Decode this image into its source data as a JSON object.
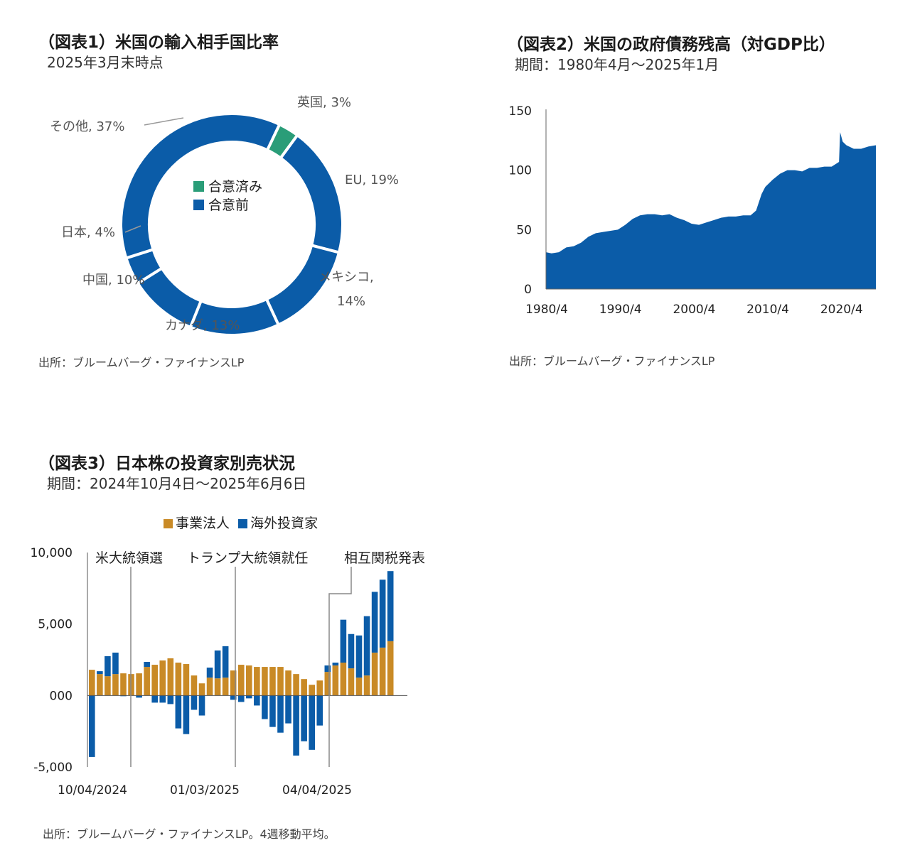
{
  "colors": {
    "blue": "#0b5ca8",
    "green": "#2a9d78",
    "orange": "#c98a26",
    "axis": "#888888",
    "leader": "#999999"
  },
  "chart_data": [
    {
      "id": "fig1",
      "type": "pie",
      "title": "（図表1）米国の輸入相手国比率",
      "subtitle": "2025年3月末時点",
      "source": "出所：ブルームバーグ・ファイナンスLP",
      "legend": [
        "合意済み",
        "合意前"
      ],
      "slices": [
        {
          "label": "英国, 3%",
          "name": "英国",
          "value": 3,
          "status": "合意済み"
        },
        {
          "label": "EU, 19%",
          "name": "EU",
          "value": 19,
          "status": "合意前"
        },
        {
          "label": "メキシコ,",
          "label2": "14%",
          "name": "メキシコ",
          "value": 14,
          "status": "合意前"
        },
        {
          "label": "カナダ, 13%",
          "name": "カナダ",
          "value": 13,
          "status": "合意前"
        },
        {
          "label": "中国, 10%",
          "name": "中国",
          "value": 10,
          "status": "合意前"
        },
        {
          "label": "日本, 4%",
          "name": "日本",
          "value": 4,
          "status": "合意前"
        },
        {
          "label": "その他, 37%",
          "name": "その他",
          "value": 37,
          "status": "合意前"
        }
      ]
    },
    {
      "id": "fig2",
      "type": "area",
      "title": "（図表2）米国の政府債務残高（対GDP比）",
      "subtitle": "期間：1980年4月～2025年1月",
      "source": "出所：ブルームバーグ・ファイナンスLP",
      "y_ticks": [
        "0",
        "50",
        "100",
        "150"
      ],
      "x_ticks": [
        "1980/4",
        "1990/4",
        "2000/4",
        "2010/4",
        "2020/4"
      ],
      "x_tick_years": [
        1980.25,
        1990.25,
        2000.25,
        2010.25,
        2020.25
      ],
      "xlim": [
        1980.25,
        2025.0
      ],
      "ylim": [
        0,
        150
      ],
      "x": [
        1980.25,
        1981,
        1982,
        1983,
        1984,
        1985,
        1986,
        1987,
        1988,
        1989,
        1990,
        1991,
        1992,
        1993,
        1994,
        1995,
        1996,
        1997,
        1998,
        1999,
        2000,
        2001,
        2002,
        2003,
        2004,
        2005,
        2006,
        2007,
        2008,
        2008.75,
        2009.5,
        2010,
        2011,
        2012,
        2013,
        2014,
        2015,
        2016,
        2017,
        2018,
        2019,
        2020,
        2020.15,
        2020.5,
        2021,
        2022,
        2023,
        2024,
        2025.0
      ],
      "values": [
        31,
        30,
        31,
        35,
        36,
        39,
        44,
        47,
        48,
        49,
        50,
        54,
        59,
        62,
        63,
        63,
        62,
        63,
        60,
        58,
        55,
        54,
        56,
        58,
        60,
        61,
        61,
        62,
        62,
        66,
        80,
        86,
        92,
        97,
        100,
        100,
        99,
        102,
        102,
        103,
        103,
        107,
        132,
        124,
        121,
        118,
        118,
        120,
        121
      ]
    },
    {
      "id": "fig3",
      "type": "bar",
      "title": "（図表3）日本株の投資家別売状況",
      "subtitle": "期間：2024年10月4日～2025年6月6日",
      "source": "出所：ブルームバーグ・ファイナンスLP。4週移動平均。",
      "legend": [
        "事業法人",
        "海外投資家"
      ],
      "y_ticks": [
        "-5,000",
        "000",
        "5,000",
        "10,000"
      ],
      "ylim": [
        -5000,
        10000
      ],
      "x_ticks": [
        "10/04/2024",
        "01/03/2025",
        "04/04/2025"
      ],
      "annotations": [
        "米大統領選",
        "トランプ大統領就任",
        "相互関税発表"
      ],
      "series": [
        {
          "name": "事業法人",
          "values": [
            1800,
            1500,
            1350,
            1500,
            1550,
            1500,
            1550,
            2000,
            2150,
            2450,
            2600,
            2300,
            2200,
            1400,
            850,
            1250,
            1200,
            1250,
            1750,
            2150,
            2100,
            2000,
            2000,
            2000,
            2000,
            1750,
            1500,
            1150,
            750,
            1050,
            1650,
            2100,
            2300,
            1900,
            1250,
            1400,
            3000,
            3350,
            3800
          ]
        },
        {
          "name": "海外投資家",
          "values": [
            -4300,
            200,
            1400,
            1500,
            -50,
            0,
            -150,
            350,
            -500,
            -500,
            -600,
            -2300,
            -2700,
            -1000,
            -1400,
            700,
            1950,
            2200,
            -300,
            -450,
            -200,
            -700,
            -1650,
            -2200,
            -2600,
            -1950,
            -4200,
            -3200,
            -3800,
            -2100,
            450,
            200,
            3000,
            2400,
            2950,
            4150,
            4250,
            4750,
            4900
          ]
        }
      ]
    }
  ]
}
